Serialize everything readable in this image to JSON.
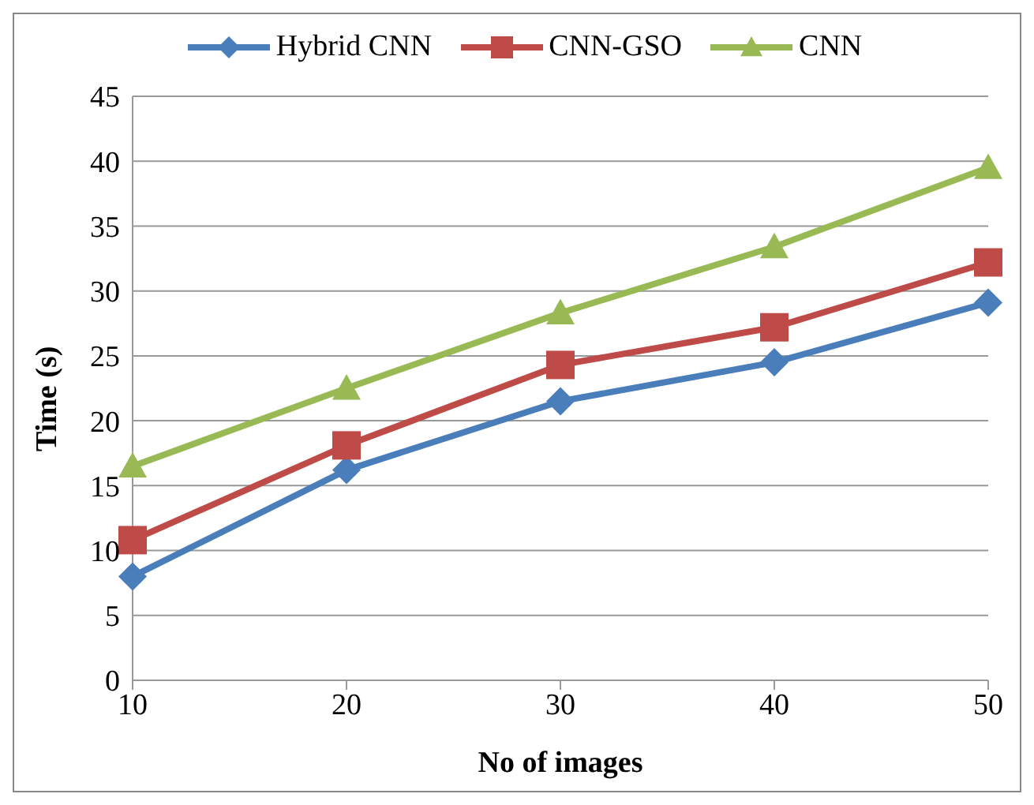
{
  "chart_data": {
    "type": "line",
    "xlabel": "No of images",
    "ylabel": "Time (s)",
    "categories": [
      "10",
      "20",
      "30",
      "40",
      "50"
    ],
    "series": [
      {
        "name": "Hybrid CNN",
        "color": "#4a7ebb",
        "marker": "diamond",
        "values": [
          8.0,
          16.2,
          21.5,
          24.5,
          29.1
        ]
      },
      {
        "name": "CNN-GSO",
        "color": "#be4b48",
        "marker": "square",
        "values": [
          10.8,
          18.1,
          24.3,
          27.2,
          32.2
        ]
      },
      {
        "name": "CNN",
        "color": "#98b954",
        "marker": "triangle",
        "values": [
          16.5,
          22.5,
          28.3,
          33.4,
          39.5
        ]
      }
    ],
    "ylim": [
      0,
      45
    ],
    "yticks": [
      0,
      5,
      10,
      15,
      20,
      25,
      30,
      35,
      40,
      45
    ],
    "grid": "y",
    "legend": "top",
    "line_style": "solid"
  }
}
